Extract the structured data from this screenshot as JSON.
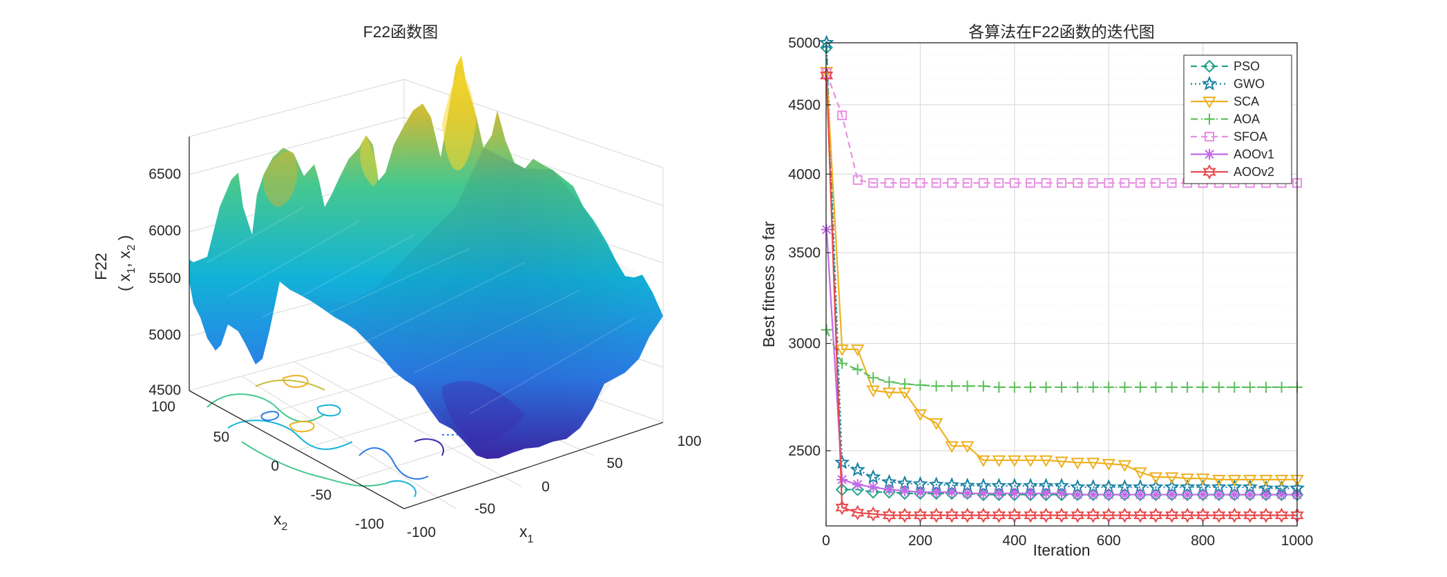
{
  "left": {
    "title": "F22函数图",
    "zlabel_line1": "F22",
    "zlabel_line2": "( x",
    "zlabel_sub1": "1",
    "zlabel_mid": ", x",
    "zlabel_sub2": "2",
    "zlabel_end": ")",
    "xlabel": "x",
    "xlabel_sub": "1",
    "ylabel": "x",
    "ylabel_sub": "2",
    "z_ticks": [
      "6500",
      "6000",
      "5500",
      "5000",
      "4500"
    ],
    "x1_ticks": [
      "-100",
      "-50",
      "0",
      "50",
      "100"
    ],
    "x2_ticks": [
      "-100",
      "-50",
      "0",
      "50",
      "100"
    ],
    "colormap": [
      "#3e26a8",
      "#2c7ae8",
      "#12b2d8",
      "#46c88e",
      "#c6bb3b",
      "#f9d82a"
    ]
  },
  "chart_data": {
    "type": "line",
    "title": "各算法在F22函数的迭代图",
    "xlabel": "Iteration",
    "ylabel": "Best fitness so far",
    "xlim": [
      0,
      1000
    ],
    "ylim": [
      2200,
      5000
    ],
    "x_ticks": [
      "0",
      "200",
      "400",
      "600",
      "800",
      "1000"
    ],
    "y_ticks": [
      "2500",
      "3000",
      "3500",
      "4000",
      "4500",
      "5000"
    ],
    "grid": true,
    "legend_position": "top-right",
    "x": [
      1,
      34,
      67,
      100,
      134,
      167,
      200,
      234,
      267,
      300,
      334,
      367,
      400,
      434,
      467,
      500,
      534,
      567,
      600,
      634,
      667,
      700,
      734,
      767,
      800,
      834,
      867,
      900,
      934,
      967,
      1000
    ],
    "series": [
      {
        "name": "PSO",
        "color": "#20a387",
        "dash": "dashed",
        "marker": "diamond",
        "values": [
          4960,
          2340,
          2340,
          2330,
          2330,
          2325,
          2325,
          2325,
          2325,
          2325,
          2320,
          2320,
          2320,
          2320,
          2320,
          2320,
          2320,
          2320,
          2320,
          2320,
          2320,
          2320,
          2320,
          2320,
          2320,
          2320,
          2320,
          2320,
          2320,
          2320,
          2320
        ]
      },
      {
        "name": "GWO",
        "color": "#1780a1",
        "dash": "dotted",
        "marker": "star",
        "values": [
          5000,
          2450,
          2420,
          2390,
          2370,
          2365,
          2362,
          2360,
          2358,
          2356,
          2355,
          2355,
          2355,
          2355,
          2355,
          2355,
          2350,
          2350,
          2350,
          2350,
          2350,
          2350,
          2350,
          2350,
          2350,
          2350,
          2350,
          2350,
          2345,
          2345,
          2345
        ]
      },
      {
        "name": "SCA",
        "color": "#edb120",
        "dash": "solid",
        "marker": "triangle",
        "values": [
          4760,
          2970,
          2970,
          2770,
          2760,
          2760,
          2660,
          2620,
          2520,
          2520,
          2460,
          2460,
          2460,
          2460,
          2460,
          2455,
          2450,
          2450,
          2445,
          2440,
          2410,
          2390,
          2390,
          2385,
          2385,
          2380,
          2380,
          2380,
          2380,
          2380,
          2380
        ]
      },
      {
        "name": "AOA",
        "color": "#5abf5a",
        "dash": "dashdot",
        "marker": "plus",
        "values": [
          3070,
          2900,
          2870,
          2830,
          2810,
          2800,
          2795,
          2790,
          2790,
          2790,
          2790,
          2785,
          2785,
          2785,
          2785,
          2785,
          2785,
          2785,
          2785,
          2785,
          2785,
          2785,
          2785,
          2785,
          2785,
          2785,
          2785,
          2785,
          2785,
          2785,
          2785
        ]
      },
      {
        "name": "SFOA",
        "color": "#e98ee3",
        "dash": "dashed",
        "marker": "square",
        "values": [
          4750,
          4420,
          3960,
          3940,
          3940,
          3940,
          3940,
          3940,
          3940,
          3940,
          3940,
          3940,
          3940,
          3940,
          3940,
          3940,
          3940,
          3940,
          3940,
          3940,
          3940,
          3940,
          3940,
          3940,
          3940,
          3940,
          3940,
          3940,
          3940,
          3940,
          3940
        ]
      },
      {
        "name": "AOOv1",
        "color": "#c569e8",
        "dash": "solid",
        "marker": "asterisk",
        "values": [
          3640,
          2380,
          2360,
          2350,
          2340,
          2335,
          2330,
          2330,
          2330,
          2325,
          2325,
          2325,
          2325,
          2325,
          2325,
          2325,
          2320,
          2320,
          2320,
          2320,
          2320,
          2320,
          2320,
          2320,
          2320,
          2320,
          2320,
          2320,
          2320,
          2320,
          2320
        ]
      },
      {
        "name": "AOOv2",
        "color": "#e8474c",
        "dash": "solid",
        "marker": "hexagram",
        "values": [
          4730,
          2270,
          2250,
          2245,
          2240,
          2240,
          2240,
          2240,
          2240,
          2240,
          2240,
          2240,
          2240,
          2240,
          2240,
          2240,
          2240,
          2240,
          2240,
          2240,
          2240,
          2240,
          2240,
          2240,
          2240,
          2240,
          2240,
          2240,
          2240,
          2240,
          2240
        ]
      }
    ]
  }
}
